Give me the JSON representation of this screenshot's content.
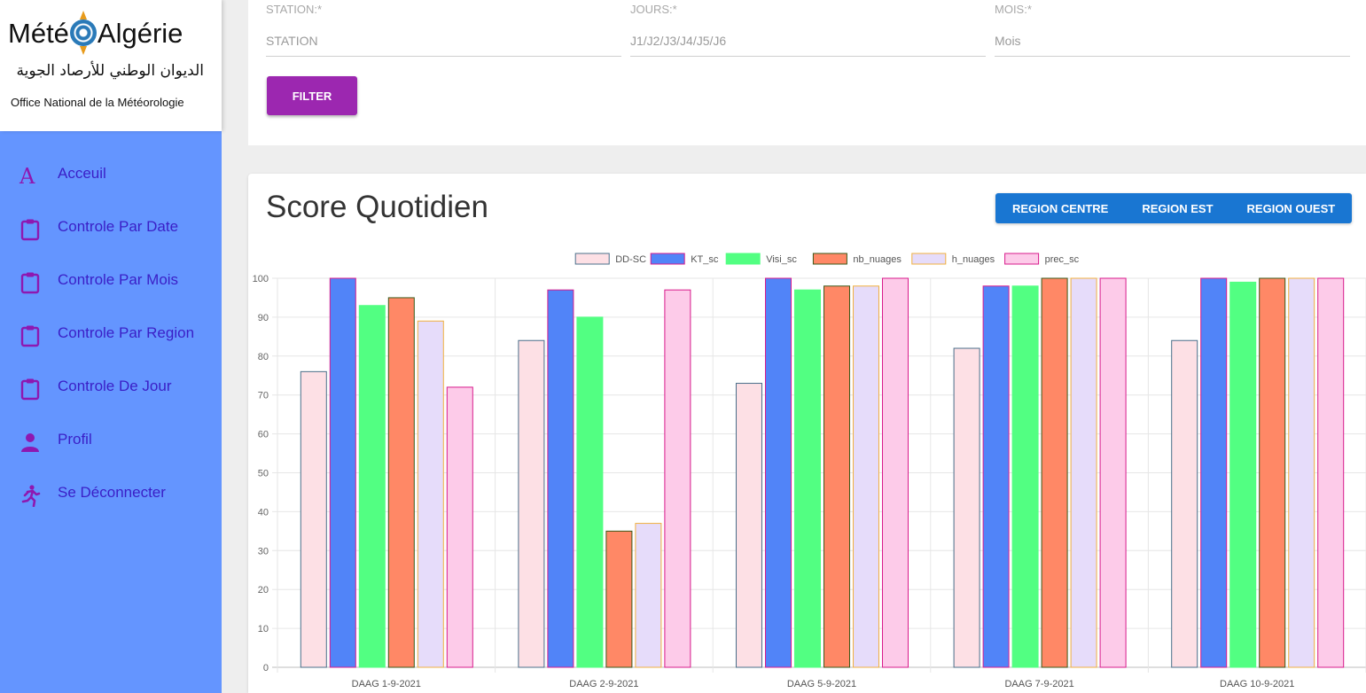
{
  "logo": {
    "title_left": "Mété",
    "title_right": "Algérie",
    "arabic": "الديوان الوطني للأرصاد الجوية",
    "subtitle": "Office National de la Météorologie"
  },
  "sidebar": {
    "items": [
      {
        "label": "Acceuil",
        "icon": "letter-a-icon"
      },
      {
        "label": "Controle Par Date",
        "icon": "clipboard-icon"
      },
      {
        "label": "Controle Par Mois",
        "icon": "clipboard-icon"
      },
      {
        "label": "Controle Par Region",
        "icon": "clipboard-icon"
      },
      {
        "label": "Controle De Jour",
        "icon": "clipboard-icon"
      },
      {
        "label": "Profil",
        "icon": "person-icon"
      },
      {
        "label": "Se Déconnecter",
        "icon": "running-person-icon"
      }
    ]
  },
  "filters": {
    "station": {
      "label": "STATION:*",
      "placeholder": "STATION"
    },
    "jours": {
      "label": "JOURS:*",
      "placeholder": "J1/J2/J3/J4/J5/J6"
    },
    "mois": {
      "label": "MOIS:*",
      "placeholder": "Mois"
    },
    "filter_button": "FILTER"
  },
  "score": {
    "title": "Score Quotidien",
    "regions": [
      "REGION CENTRE",
      "REGION EST",
      "REGION OUEST"
    ]
  },
  "colors": {
    "sidebar_bg": "#6495ff",
    "nav_text": "#3a1fc7",
    "nav_icon": "#8e18b1",
    "filter_button": "#9c27b0",
    "region_button": "#1976d2"
  },
  "chart_data": {
    "type": "bar",
    "categories": [
      "DAAG 1-9-2021",
      "DAAG 2-9-2021",
      "DAAG 5-9-2021",
      "DAAG 7-9-2021",
      "DAAG 10-9-2021"
    ],
    "ylim": [
      0,
      100
    ],
    "yticks": [
      0,
      10,
      20,
      30,
      40,
      50,
      60,
      70,
      80,
      90,
      100
    ],
    "grid": true,
    "legend_position": "top-center",
    "series": [
      {
        "name": "DD-SC",
        "values": [
          76,
          84,
          73,
          82,
          84
        ],
        "fill": "#fde0e5",
        "stroke": "#4a6f8a"
      },
      {
        "name": "KT_sc",
        "values": [
          100,
          97,
          100,
          98,
          100
        ],
        "fill": "#5184f8",
        "stroke": "#d81b8c"
      },
      {
        "name": "Visi_sc",
        "values": [
          93,
          90,
          97,
          98,
          99
        ],
        "fill": "#52ff82",
        "stroke": "#52ff82"
      },
      {
        "name": "nb_nuages",
        "values": [
          95,
          35,
          98,
          100,
          100
        ],
        "fill": "#ff8866",
        "stroke": "#3a5a1a"
      },
      {
        "name": "h_nuages",
        "values": [
          89,
          37,
          98,
          100,
          100
        ],
        "fill": "#e6dcfa",
        "stroke": "#f0b040"
      },
      {
        "name": "prec_sc",
        "values": [
          72,
          97,
          100,
          100,
          100
        ],
        "fill": "#fdcbe9",
        "stroke": "#d81b8c"
      }
    ]
  }
}
